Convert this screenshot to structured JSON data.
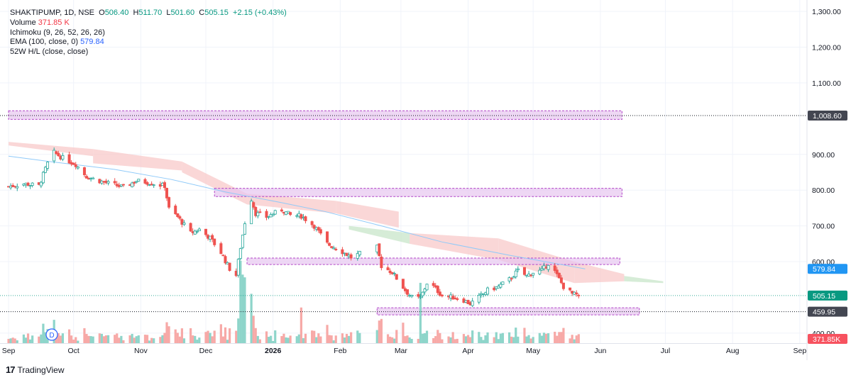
{
  "legend": {
    "symbol_line": "SHAKTIPUMP, 1D, NSE",
    "open_label": "O",
    "open": "506.40",
    "high_label": "H",
    "high": "511.70",
    "low_label": "L",
    "low": "501.60",
    "close_label": "C",
    "close": "505.15",
    "change": "+2.15 (+0.43%)",
    "volume_label": "Volume",
    "volume": "371.85 K",
    "ichimoku": "Ichimoku (9, 26, 52, 26, 26)",
    "ema_label": "EMA (100, close, 0)",
    "ema": "579.84",
    "hl52": "52W H/L (close, close)"
  },
  "brand": {
    "mark": "17",
    "name": "TradingView"
  },
  "event_marker": "D",
  "colors": {
    "up": "#26a69a",
    "down": "#ef5350",
    "ema": "#90caf9",
    "zone_fill": "#e7c6ef",
    "zone_stroke": "#b144c7",
    "cloud_red": "#f8c9c9",
    "cloud_green": "#c8e6c9",
    "price_line": "#089981",
    "axis_text": "#787b86"
  },
  "chart_data": {
    "type": "candlestick",
    "y_ticks": [
      {
        "value": 1300,
        "label": "1,300.00"
      },
      {
        "value": 1200,
        "label": "1,200.00"
      },
      {
        "value": 1100,
        "label": "1,100.00"
      },
      {
        "value": 900,
        "label": "900.00"
      },
      {
        "value": 800,
        "label": "800.00"
      },
      {
        "value": 700,
        "label": "700.00"
      },
      {
        "value": 600,
        "label": "600.00"
      },
      {
        "value": 400,
        "label": "400.00"
      }
    ],
    "ylim": [
      372,
      1320
    ],
    "x_ticks": [
      {
        "label": "Sep",
        "date": "2025-09-01",
        "bold": false
      },
      {
        "label": "Oct",
        "date": "2025-10-01",
        "bold": false
      },
      {
        "label": "Nov",
        "date": "2025-11-01",
        "bold": false
      },
      {
        "label": "Dec",
        "date": "2025-12-01",
        "bold": false
      },
      {
        "label": "2026",
        "date": "2026-01-01",
        "bold": true
      },
      {
        "label": "Feb",
        "date": "2026-02-01",
        "bold": false
      },
      {
        "label": "Mar",
        "date": "2026-03-01",
        "bold": false
      },
      {
        "label": "Apr",
        "date": "2026-04-01",
        "bold": false
      },
      {
        "label": "May",
        "date": "2026-05-01",
        "bold": false
      },
      {
        "label": "Jun",
        "date": "2026-06-01",
        "bold": false
      },
      {
        "label": "Jul",
        "date": "2026-07-01",
        "bold": false
      },
      {
        "label": "Aug",
        "date": "2026-08-01",
        "bold": false
      },
      {
        "label": "Sep",
        "date": "2026-09-01",
        "bold": false
      }
    ],
    "price_badges": [
      {
        "value": 1008.6,
        "label": "1,008.60",
        "style": "dark",
        "line": "dotted"
      },
      {
        "value": 579.84,
        "label": "579.84",
        "style": "ema",
        "line": "none"
      },
      {
        "value": 505.15,
        "label": "505.15",
        "style": "last",
        "line": "dotted-green"
      },
      {
        "value": 459.95,
        "label": "459.95",
        "style": "dark",
        "line": "dotted"
      }
    ],
    "volume_badge": {
      "label": "371.85K"
    },
    "zones": [
      {
        "from": "2025-09-01",
        "to": "2026-06-11",
        "top": 1022,
        "bottom": 998
      },
      {
        "from": "2025-12-05",
        "to": "2026-06-11",
        "top": 805,
        "bottom": 782
      },
      {
        "from": "2025-12-20",
        "to": "2026-06-10",
        "top": 610,
        "bottom": 592
      },
      {
        "from": "2026-02-18",
        "to": "2026-06-19",
        "top": 471,
        "bottom": 451
      }
    ],
    "anchors": [
      [
        "2025-09-01",
        810
      ],
      [
        "2025-09-08",
        818
      ],
      [
        "2025-09-15",
        812
      ],
      [
        "2025-09-19",
        875
      ],
      [
        "2025-09-22",
        905
      ],
      [
        "2025-09-26",
        890
      ],
      [
        "2025-10-02",
        872
      ],
      [
        "2025-10-07",
        838
      ],
      [
        "2025-10-15",
        822
      ],
      [
        "2025-10-24",
        808
      ],
      [
        "2025-10-30",
        826
      ],
      [
        "2025-11-04",
        822
      ],
      [
        "2025-11-07",
        818
      ],
      [
        "2025-11-12",
        812
      ],
      [
        "2025-11-14",
        748
      ],
      [
        "2025-11-18",
        725
      ],
      [
        "2025-11-24",
        680
      ],
      [
        "2025-11-28",
        690
      ],
      [
        "2025-12-03",
        666
      ],
      [
        "2025-12-08",
        625
      ],
      [
        "2025-12-12",
        580
      ],
      [
        "2025-12-15",
        562
      ],
      [
        "2025-12-17",
        640
      ],
      [
        "2025-12-19",
        710
      ],
      [
        "2025-12-22",
        775
      ],
      [
        "2025-12-24",
        735
      ],
      [
        "2025-12-29",
        725
      ],
      [
        "2026-01-05",
        745
      ],
      [
        "2026-01-09",
        730
      ],
      [
        "2026-01-14",
        728
      ],
      [
        "2026-01-20",
        700
      ],
      [
        "2026-01-26",
        650
      ],
      [
        "2026-02-02",
        628
      ],
      [
        "2026-02-06",
        612
      ],
      [
        "2026-02-11",
        625
      ],
      [
        "2026-02-16",
        658
      ],
      [
        "2026-02-18",
        640
      ],
      [
        "2026-02-20",
        588
      ],
      [
        "2026-02-25",
        570
      ],
      [
        "2026-03-03",
        520
      ],
      [
        "2026-03-06",
        500
      ],
      [
        "2026-03-10",
        498
      ],
      [
        "2026-03-13",
        540
      ],
      [
        "2026-03-16",
        530
      ],
      [
        "2026-03-20",
        505
      ],
      [
        "2026-03-25",
        500
      ],
      [
        "2026-03-30",
        492
      ],
      [
        "2026-04-02",
        482
      ],
      [
        "2026-04-06",
        500
      ],
      [
        "2026-04-10",
        520
      ],
      [
        "2026-04-15",
        530
      ],
      [
        "2026-04-20",
        550
      ],
      [
        "2026-04-24",
        575
      ],
      [
        "2026-04-28",
        560
      ],
      [
        "2026-05-01",
        570
      ],
      [
        "2026-05-05",
        575
      ],
      [
        "2026-05-08",
        595
      ],
      [
        "2026-05-11",
        572
      ],
      [
        "2026-05-15",
        530
      ],
      [
        "2026-05-19",
        510
      ],
      [
        "2026-05-22",
        505
      ]
    ],
    "gap": {
      "from": "2026-02-10",
      "to": "2026-02-18"
    },
    "last_close": 505.15,
    "ema_line": [
      [
        "2025-09-01",
        895
      ],
      [
        "2025-09-20",
        880
      ],
      [
        "2025-10-20",
        858
      ],
      [
        "2025-11-15",
        830
      ],
      [
        "2025-12-10",
        795
      ],
      [
        "2026-01-05",
        765
      ],
      [
        "2026-01-25",
        740
      ],
      [
        "2026-02-20",
        700
      ],
      [
        "2026-03-20",
        655
      ],
      [
        "2026-04-20",
        618
      ],
      [
        "2026-05-25",
        579.84
      ]
    ],
    "cloud_red": [
      {
        "from": "2025-09-01",
        "to": "2025-10-10",
        "top": [
          935,
          915
        ],
        "bottom": [
          925,
          895
        ]
      },
      {
        "from": "2025-10-10",
        "to": "2025-11-20",
        "top": [
          915,
          880
        ],
        "bottom": [
          875,
          855
        ]
      },
      {
        "from": "2025-11-20",
        "to": "2025-12-20",
        "top": [
          880,
          790
        ],
        "bottom": [
          850,
          760
        ]
      },
      {
        "from": "2025-12-20",
        "to": "2026-01-30",
        "top": [
          790,
          770
        ],
        "bottom": [
          760,
          735
        ]
      },
      {
        "from": "2026-01-30",
        "to": "2026-02-28",
        "top": [
          770,
          740
        ],
        "bottom": [
          735,
          695
        ]
      },
      {
        "from": "2026-03-05",
        "to": "2026-04-15",
        "top": [
          680,
          665
        ],
        "bottom": [
          650,
          605
        ]
      },
      {
        "from": "2026-04-15",
        "to": "2026-05-20",
        "top": [
          665,
          600
        ],
        "bottom": [
          605,
          540
        ]
      },
      {
        "from": "2026-05-20",
        "to": "2026-06-12",
        "top": [
          600,
          565
        ],
        "bottom": [
          540,
          545
        ]
      }
    ],
    "cloud_green": [
      {
        "from": "2026-02-05",
        "to": "2026-03-05",
        "top": [
          700,
          680
        ],
        "bottom": [
          690,
          650
        ]
      },
      {
        "from": "2026-06-12",
        "to": "2026-06-30",
        "top": [
          560,
          545
        ],
        "bottom": [
          545,
          540
        ]
      }
    ]
  }
}
